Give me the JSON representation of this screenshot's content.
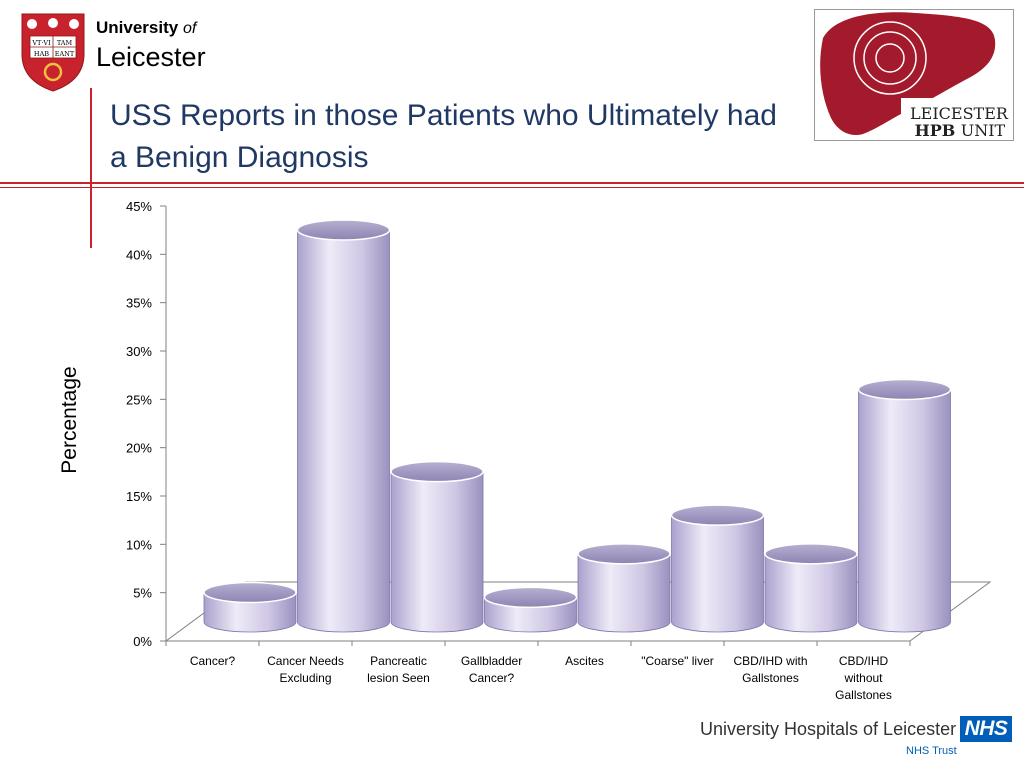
{
  "header": {
    "university_bold": "University",
    "university_of": "of",
    "university_name": "Leicester",
    "crest_motto_top_left": "VT·VI",
    "crest_motto_top_right": "TAM",
    "crest_motto_bottom_left": "HAB",
    "crest_motto_bottom_right": "EANT",
    "title": "USS Reports in those Patients who Ultimately had a Benign Diagnosis",
    "hpb_line1": "LEICESTER",
    "hpb_line2": "HPB",
    "hpb_line3": "UNIT"
  },
  "footer": {
    "hospital_name": "University Hospitals of Leicester",
    "nhs_logo": "NHS",
    "nhs_trust": "NHS Trust"
  },
  "colors": {
    "brand_red": "#c8232c",
    "title_blue": "#1f3864",
    "bar_fill": "#cdc5e2",
    "bar_top": "#9e96bd",
    "nhs_blue": "#005eb8"
  },
  "chart_data": {
    "type": "bar",
    "title": "",
    "xlabel": "",
    "ylabel": "Percentage",
    "ylim": [
      0,
      45
    ],
    "yticks": [
      "0%",
      "5%",
      "10%",
      "15%",
      "20%",
      "25%",
      "30%",
      "35%",
      "40%",
      "45%"
    ],
    "categories": [
      [
        "Cancer?"
      ],
      [
        "Cancer Needs",
        "Excluding"
      ],
      [
        "Pancreatic",
        "lesion Seen"
      ],
      [
        "Gallbladder",
        "Cancer?"
      ],
      [
        "Ascites"
      ],
      [
        "\"Coarse\" liver"
      ],
      [
        "CBD/IHD with",
        "Gallstones"
      ],
      [
        "CBD/IHD",
        "without",
        "Gallstones"
      ]
    ],
    "values": [
      4.5,
      42,
      17,
      4,
      8.5,
      12.5,
      8.5,
      25.5
    ],
    "grid": false,
    "legend": "none"
  }
}
